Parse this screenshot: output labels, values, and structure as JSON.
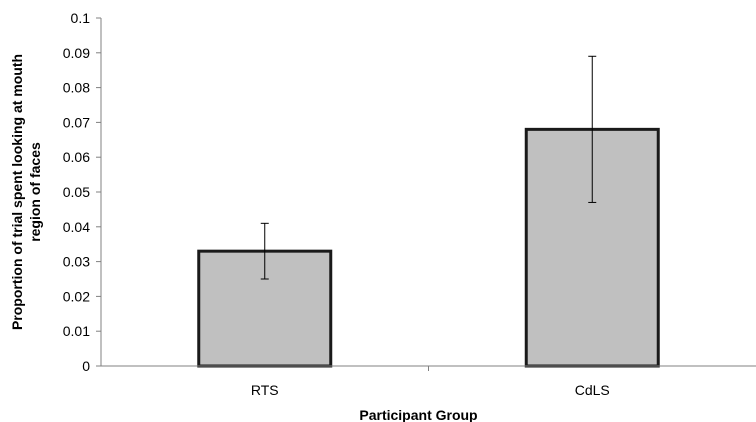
{
  "chart_data": {
    "type": "bar",
    "categories": [
      "RTS",
      "CdLS"
    ],
    "values": [
      0.033,
      0.068
    ],
    "error_upper": [
      0.041,
      0.089
    ],
    "error_lower": [
      0.025,
      0.047
    ],
    "xlabel": "Participant Group",
    "ylabel_lines": [
      "Proportion of trial spent looking at mouth",
      "region of faces"
    ],
    "ylim": [
      0,
      0.1
    ],
    "yticks": [
      "0",
      "0.01",
      "0.02",
      "0.03",
      "0.04",
      "0.05",
      "0.06",
      "0.07",
      "0.08",
      "0.09",
      "0.1"
    ],
    "grid": false,
    "bar_color": "#c0c0c0",
    "bar_edge_color": "#1a1a1a"
  }
}
